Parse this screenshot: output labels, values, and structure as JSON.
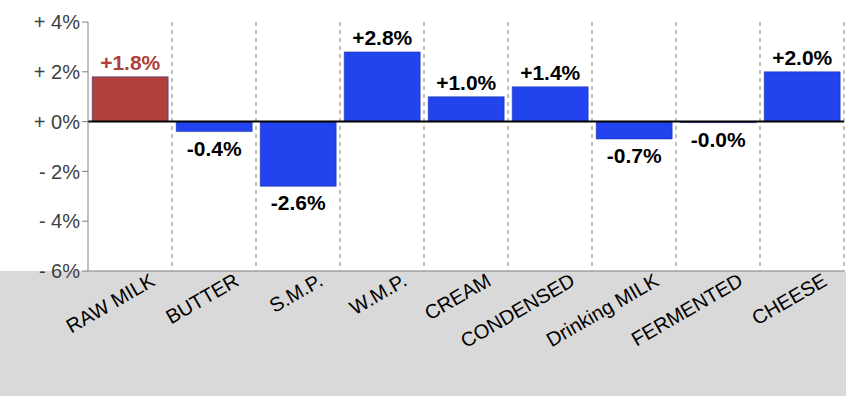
{
  "chart_data": {
    "type": "bar",
    "categories": [
      "RAW MILK",
      "BUTTER",
      "S.M.P.",
      "W.M.P.",
      "CREAM",
      "CONDENSED",
      "Drinking MILK",
      "FERMENTED",
      "CHEESE"
    ],
    "values": [
      1.8,
      -0.4,
      -2.6,
      2.8,
      1.0,
      1.4,
      -0.7,
      -0.04,
      2.0
    ],
    "value_labels": [
      "+1.8%",
      "-0.4%",
      "-2.6%",
      "+2.8%",
      "+1.0%",
      "+1.4%",
      "-0.7%",
      "-0.0%",
      "+2.0%"
    ],
    "color": "#2244ee",
    "colors": [
      "#b0403a",
      "#2244ee",
      "#2244ee",
      "#2244ee",
      "#2244ee",
      "#2244ee",
      "#2244ee",
      "#2244ee",
      "#2244ee"
    ],
    "ylim": [
      -6,
      4
    ],
    "yticks": [
      {
        "value": -6,
        "label": "- 6%"
      },
      {
        "value": -4,
        "label": "- 4%"
      },
      {
        "value": -2,
        "label": "- 2%"
      },
      {
        "value": 0,
        "label": "+ 0%"
      },
      {
        "value": 2,
        "label": "+ 2%"
      },
      {
        "value": 4,
        "label": "+ 4%"
      }
    ],
    "grid": true,
    "data_labels": true
  }
}
